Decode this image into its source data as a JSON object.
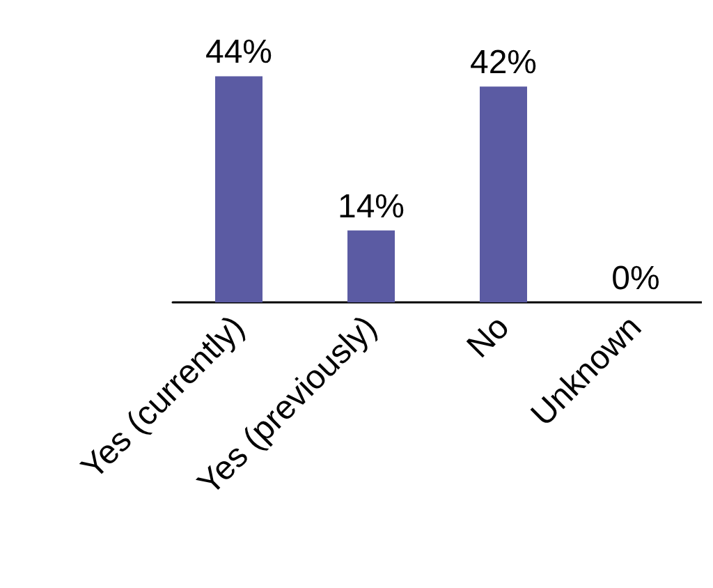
{
  "chart_data": {
    "type": "bar",
    "categories": [
      "Yes (currently)",
      "Yes (previously)",
      "No",
      "Unknown"
    ],
    "values": [
      44,
      14,
      42,
      0
    ],
    "color": "#5b5ba3",
    "value_labels": [
      "44%",
      "14%",
      "42%",
      "0%"
    ]
  }
}
